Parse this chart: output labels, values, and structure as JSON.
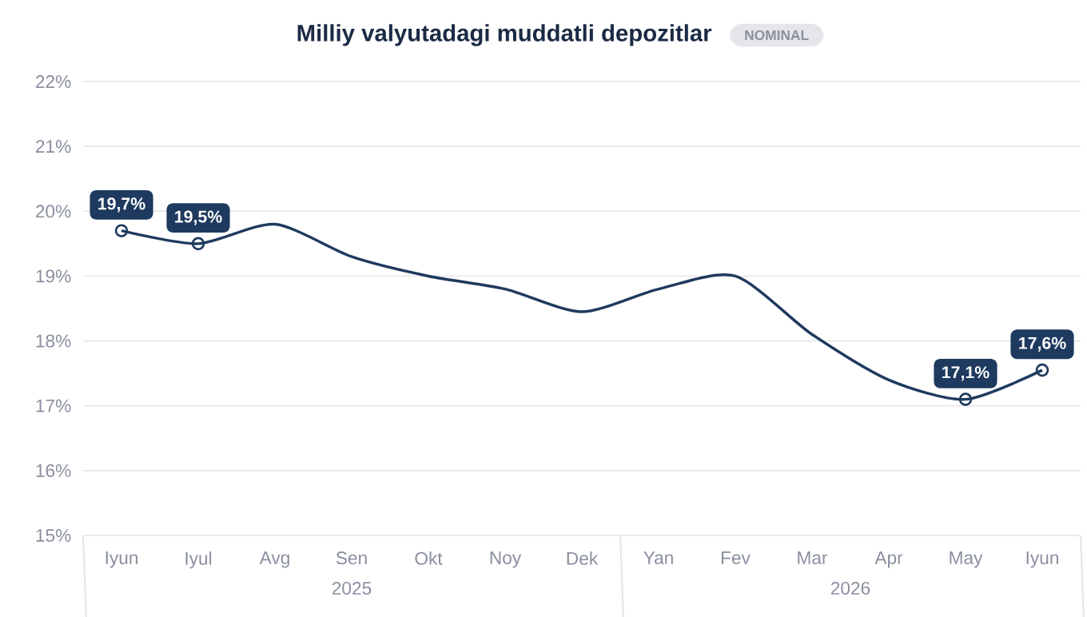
{
  "chart_data": {
    "type": "line",
    "title": "Milliy valyutadagi muddatli depozitlar",
    "subtitle": "NOMINAL",
    "categories": [
      "Iyun",
      "Iyul",
      "Avg",
      "Sen",
      "Okt",
      "Noy",
      "Dek",
      "Yan",
      "Fev",
      "Mar",
      "Apr",
      "May",
      "Iyun"
    ],
    "series": [
      {
        "color": "#1f3a5f",
        "values": [
          19.7,
          19.5,
          19.8,
          19.3,
          19.0,
          18.8,
          18.45,
          18.8,
          19.0,
          18.1,
          17.4,
          17.1,
          17.55
        ],
        "value_labels": [
          "19,7%",
          "19,5%",
          null,
          null,
          null,
          null,
          null,
          null,
          null,
          null,
          null,
          "17,1%",
          "17,6%"
        ]
      }
    ],
    "ylim": [
      15,
      22
    ],
    "yticks": [
      {
        "value": 15,
        "label": "15%"
      },
      {
        "value": 16,
        "label": "16%"
      },
      {
        "value": 17,
        "label": "17%"
      },
      {
        "value": 18,
        "label": "18%"
      },
      {
        "value": 19,
        "label": "19%"
      },
      {
        "value": 20,
        "label": "20%"
      },
      {
        "value": 21,
        "label": "21%"
      },
      {
        "value": 22,
        "label": "22%"
      }
    ],
    "grid": "y",
    "line_style": "solid",
    "annotations": [
      "2025",
      "2026"
    ]
  }
}
